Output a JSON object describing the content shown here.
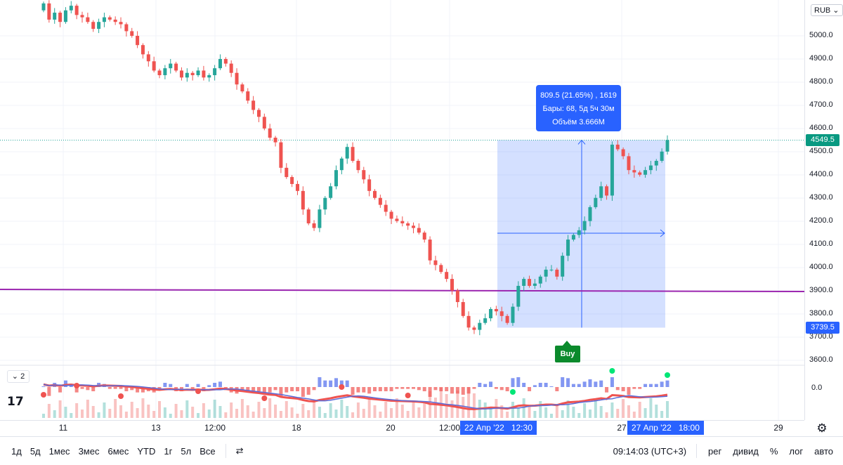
{
  "currency": "RUB",
  "price_scale": {
    "ticks": [
      "5000.0",
      "4900.0",
      "4800.0",
      "4700.0",
      "4600.0",
      "4500.0",
      "4400.0",
      "4300.0",
      "4200.0",
      "4100.0",
      "4000.0",
      "3900.0",
      "3800.0",
      "3700.0",
      "3600.0"
    ],
    "current_price": "4549.5",
    "current_price_color": "#089981",
    "range_low_price": "3739.5",
    "range_low_color": "#2962ff",
    "indicator_zero": "0.0"
  },
  "time_axis": {
    "ticks": [
      "11",
      "13",
      "12:00",
      "18",
      "20",
      "12:00",
      "27",
      "29"
    ],
    "range_start": "22 Апр '22   12:30",
    "range_end": "27 Апр '22   18:00"
  },
  "measure_tooltip": {
    "line1": "809.5 (21.65%) , 1619",
    "line2": "Бары: 68, 5д 5ч 30м",
    "line3": "Объём 3.666M"
  },
  "buy_label": "Buy",
  "indicator_collapse": "2",
  "logo_text": "17",
  "toolbar": {
    "periods": [
      "1д",
      "5д",
      "1мес",
      "3мес",
      "6мес",
      "YTD",
      "1г",
      "5л",
      "Все"
    ],
    "time": "09:14:03 (UTC+3)",
    "options": [
      "рег",
      "дивид",
      "%",
      "лог",
      "авто"
    ]
  },
  "colors": {
    "up": "#26a69a",
    "down": "#ef5350",
    "level_line": "#9c27b0",
    "range_fill": "#2962ff",
    "fast_line": "#00e676",
    "slow_line": "#5b6bd8"
  },
  "chart_data": {
    "type": "candlestick",
    "level_price": 3900,
    "measure_range": {
      "from_price": 3739.5,
      "to_price": 4549.5,
      "change": 809.5,
      "percent": 21.65,
      "bars": 68,
      "volume": "3.666M"
    },
    "closes": [
      5140,
      5070,
      5100,
      5060,
      5110,
      5130,
      5090,
      5080,
      5060,
      5030,
      5060,
      5080,
      5070,
      5060,
      5050,
      5020,
      5000,
      4960,
      4920,
      4890,
      4850,
      4830,
      4860,
      4880,
      4850,
      4820,
      4840,
      4830,
      4850,
      4820,
      4830,
      4860,
      4900,
      4880,
      4840,
      4790,
      4760,
      4720,
      4680,
      4650,
      4600,
      4560,
      4540,
      4430,
      4390,
      4360,
      4330,
      4250,
      4190,
      4170,
      4250,
      4300,
      4350,
      4420,
      4470,
      4520,
      4460,
      4420,
      4380,
      4330,
      4300,
      4270,
      4240,
      4210,
      4200,
      4190,
      4180,
      4170,
      4150,
      4120,
      4030,
      4010,
      3980,
      3950,
      3900,
      3850,
      3790,
      3740,
      3730,
      3760,
      3780,
      3820,
      3810,
      3790,
      3760,
      3830,
      3920,
      3950,
      3920,
      3930,
      3960,
      3990,
      3990,
      3960,
      4050,
      4120,
      4140,
      4160,
      4200,
      4260,
      4300,
      4350,
      4310,
      4530,
      4510,
      4480,
      4420,
      4410,
      4400,
      4420,
      4440,
      4460,
      4500,
      4550
    ]
  }
}
